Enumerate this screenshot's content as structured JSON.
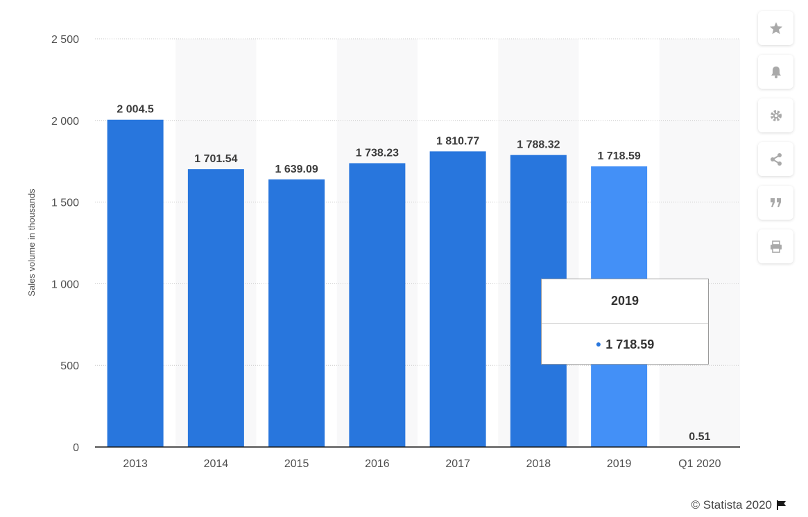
{
  "chart_data": {
    "type": "bar",
    "categories": [
      "2013",
      "2014",
      "2015",
      "2016",
      "2017",
      "2018",
      "2019",
      "Q1 2020"
    ],
    "values": [
      2004.5,
      1701.54,
      1639.09,
      1738.23,
      1810.77,
      1788.32,
      1718.59,
      0.51
    ],
    "value_labels": [
      "2 004.5",
      "1 701.54",
      "1 639.09",
      "1 738.23",
      "1 810.77",
      "1 788.32",
      "1 718.59",
      "0.51"
    ],
    "ylabel": "Sales volume in thousands",
    "yticks": [
      0,
      500,
      1000,
      1500,
      2000,
      2500
    ],
    "ytick_labels": [
      "0",
      "500",
      "1 000",
      "1 500",
      "2 000",
      "2 500"
    ],
    "ylim": [
      0,
      2500
    ],
    "grid": true,
    "highlighted_category": "2019",
    "colors": {
      "bar": "#2876dd",
      "bar_highlight": "#4390f7",
      "band": "#f8f8f9"
    }
  },
  "tooltip": {
    "title": "2019",
    "value": "1 718.59"
  },
  "toolbar": {
    "items": [
      {
        "icon": "star-icon"
      },
      {
        "icon": "bell-icon"
      },
      {
        "icon": "gear-icon"
      },
      {
        "icon": "share-icon"
      },
      {
        "icon": "quote-icon"
      },
      {
        "icon": "print-icon"
      }
    ]
  },
  "credit": {
    "text": "© Statista 2020"
  }
}
